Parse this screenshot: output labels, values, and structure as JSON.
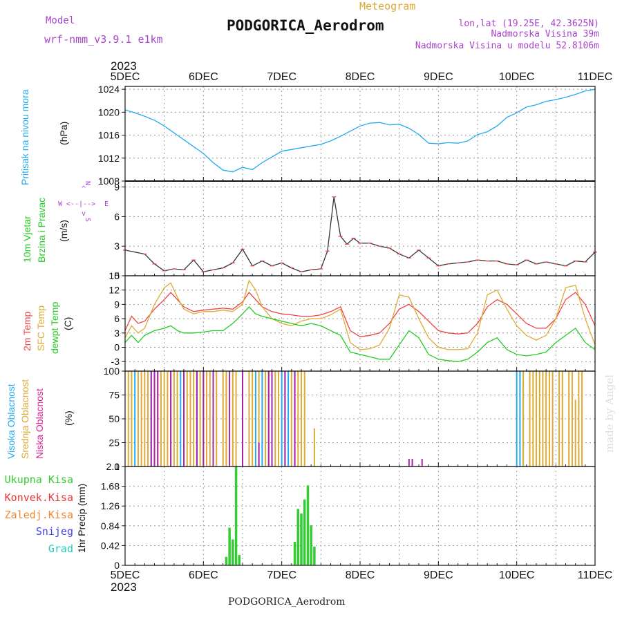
{
  "header": {
    "model_label": "Model",
    "model_name": "wrf-nmm_v3.9.1 e1km",
    "subtitle": "Meteogram",
    "station": "PODGORICA_Aerodrom",
    "lonlat": "lon,lat (19.25E, 42.3625N)",
    "elevation": "Nadmorska Visina 39m",
    "model_elevation": "Nadmorska Visina u modelu 52.8106m",
    "watermark": "made by Angel",
    "footer_station": "PODGORICA_Aerodrom"
  },
  "time_axis": {
    "year": "2023",
    "labels": [
      "5DEC",
      "6DEC",
      "7DEC",
      "8DEC",
      "9DEC",
      "10DEC",
      "11DEC"
    ]
  },
  "colors": {
    "pressure": "#22aaee",
    "wind_speed": "#333333",
    "wind_direction_labels": "#aa44cc",
    "temp2m": "#ee4444",
    "sfc_temp": "#ddaa33",
    "dewpoint": "#22cc22",
    "high_cloud": "#22aaee",
    "mid_cloud": "#ddaa33",
    "low_cloud": "#aa22aa",
    "total_precip": "#33cc33",
    "conv_precip": "#ee3333",
    "frozen_precip": "#ee8833",
    "snow": "#4444ee",
    "graupel": "#22ccbb",
    "grid": "#999999"
  },
  "chart_data": [
    {
      "type": "line",
      "panel": "pressure",
      "ylabel_left": "Pritisak na nivou mora",
      "ylabel_unit": "(hPa)",
      "yticks": [
        1008,
        1012,
        1016,
        1020,
        1024
      ],
      "ylim": [
        1008,
        1024.5
      ],
      "xlim": [
        0,
        144
      ],
      "grid": true,
      "series": [
        {
          "color_key": "pressure",
          "x": [
            0,
            3,
            6,
            9,
            12,
            18,
            24,
            27,
            30,
            33,
            36,
            39,
            42,
            45,
            48,
            54,
            60,
            63,
            66,
            69,
            72,
            75,
            78,
            81,
            84,
            87,
            90,
            93,
            96,
            99,
            102,
            105,
            108,
            111,
            114,
            117,
            120,
            123,
            126,
            129,
            132,
            135,
            138,
            141,
            144
          ],
          "y": [
            1020.4,
            1019.9,
            1019.3,
            1018.6,
            1017.6,
            1015.2,
            1012.8,
            1011.2,
            1009.9,
            1009.6,
            1010.4,
            1010.0,
            1011.2,
            1012.2,
            1013.2,
            1013.8,
            1014.4,
            1015.0,
            1015.8,
            1016.7,
            1017.6,
            1018.1,
            1018.2,
            1017.8,
            1017.9,
            1017.2,
            1016.1,
            1014.6,
            1014.5,
            1014.7,
            1014.6,
            1015.0,
            1016.1,
            1016.6,
            1017.6,
            1019.1,
            1019.9,
            1020.9,
            1021.3,
            1021.9,
            1022.2,
            1022.6,
            1023.1,
            1023.7,
            1024.0
          ]
        }
      ]
    },
    {
      "type": "line",
      "panel": "wind",
      "ylabel_left": [
        "10m Vjetar",
        "Brzina i Pravac"
      ],
      "ylabel_unit": "(m/s)",
      "direction_labels": [
        "N",
        "E",
        "S",
        "W"
      ],
      "direction_arrows": [
        "^",
        "<--|-->",
        "v"
      ],
      "yticks": [
        0,
        3,
        6,
        9
      ],
      "ylim": [
        0,
        9.6
      ],
      "xlim": [
        0,
        144
      ],
      "grid": true,
      "series": [
        {
          "color_key": "wind_speed",
          "x": [
            0,
            6,
            9,
            12,
            15,
            18,
            21,
            24,
            27,
            30,
            33,
            36,
            39,
            42,
            45,
            48,
            51,
            54,
            57,
            60,
            62,
            64,
            66,
            68,
            70,
            72,
            75,
            78,
            81,
            84,
            87,
            90,
            93,
            96,
            99,
            102,
            105,
            108,
            111,
            114,
            117,
            120,
            123,
            126,
            129,
            132,
            135,
            138,
            141,
            144
          ],
          "y": [
            2.6,
            2.2,
            1.2,
            0.5,
            0.7,
            0.6,
            1.6,
            0.4,
            0.6,
            0.8,
            1.3,
            2.7,
            1.0,
            1.5,
            1.0,
            1.3,
            0.8,
            0.4,
            0.6,
            0.7,
            2.5,
            8.0,
            4.0,
            3.2,
            3.8,
            3.3,
            3.3,
            3.0,
            2.8,
            2.2,
            1.8,
            2.6,
            1.8,
            1.0,
            1.2,
            1.3,
            1.4,
            1.6,
            1.5,
            1.5,
            1.2,
            1.1,
            1.6,
            1.2,
            1.4,
            1.2,
            1.0,
            1.5,
            1.4,
            2.4
          ]
        }
      ]
    },
    {
      "type": "line",
      "panel": "temperature",
      "ylabel_left": [
        "2m Temp",
        "SFC Temp",
        "dewpt Temp"
      ],
      "ylabel_unit": "(C)",
      "yticks": [
        -3,
        0,
        3,
        6,
        9,
        12,
        15
      ],
      "ylim": [
        -5,
        15
      ],
      "xlim": [
        0,
        144
      ],
      "grid": true,
      "series": [
        {
          "color_key": "temp2m",
          "x": [
            0,
            2,
            4,
            6,
            9,
            12,
            14,
            16,
            18,
            21,
            24,
            27,
            30,
            33,
            36,
            38,
            40,
            42,
            45,
            48,
            51,
            54,
            57,
            60,
            63,
            66,
            69,
            72,
            75,
            78,
            81,
            84,
            87,
            90,
            93,
            96,
            99,
            102,
            105,
            108,
            111,
            114,
            117,
            120,
            123,
            126,
            129,
            132,
            135,
            138,
            141,
            144
          ],
          "y": [
            3.5,
            6.5,
            5.0,
            5.5,
            8.0,
            10.0,
            11.5,
            10.0,
            8.5,
            7.5,
            7.8,
            8.0,
            8.2,
            8.0,
            9.5,
            11.5,
            10.0,
            8.5,
            7.5,
            7.0,
            6.8,
            6.5,
            6.5,
            6.8,
            7.5,
            8.5,
            3.5,
            2.2,
            2.5,
            3.0,
            5.0,
            8.0,
            9.0,
            7.5,
            5.5,
            3.5,
            3.0,
            2.8,
            3.0,
            5.0,
            8.5,
            10.0,
            9.0,
            7.0,
            5.0,
            4.0,
            4.0,
            6.0,
            10.0,
            11.5,
            9.0,
            4.5
          ]
        },
        {
          "color_key": "sfc_temp",
          "x": [
            0,
            2,
            4,
            6,
            9,
            12,
            14,
            16,
            18,
            21,
            24,
            27,
            30,
            33,
            36,
            38,
            40,
            42,
            45,
            48,
            51,
            54,
            57,
            60,
            63,
            66,
            69,
            72,
            75,
            78,
            81,
            84,
            87,
            90,
            93,
            96,
            99,
            102,
            105,
            108,
            111,
            114,
            117,
            120,
            123,
            126,
            129,
            132,
            135,
            138,
            141,
            144
          ],
          "y": [
            2.0,
            4.5,
            3.0,
            4.0,
            9.0,
            12.5,
            13.5,
            10.5,
            8.0,
            7.0,
            7.5,
            7.5,
            7.8,
            7.5,
            9.0,
            14.0,
            12.0,
            8.5,
            6.0,
            5.0,
            4.5,
            5.5,
            6.0,
            6.0,
            6.8,
            8.0,
            1.0,
            -0.5,
            -0.3,
            0.5,
            4.0,
            11.0,
            10.5,
            6.0,
            2.0,
            0.0,
            -0.5,
            -0.5,
            -0.3,
            3.0,
            11.0,
            12.0,
            8.0,
            4.5,
            2.5,
            1.5,
            2.5,
            6.0,
            12.5,
            13.0,
            6.0,
            0.5
          ]
        },
        {
          "color_key": "dewpoint",
          "x": [
            0,
            2,
            4,
            6,
            9,
            12,
            14,
            16,
            18,
            21,
            24,
            27,
            30,
            33,
            36,
            38,
            40,
            42,
            45,
            48,
            51,
            54,
            57,
            60,
            63,
            66,
            69,
            72,
            75,
            78,
            81,
            84,
            87,
            90,
            93,
            96,
            99,
            102,
            105,
            108,
            111,
            114,
            117,
            120,
            123,
            126,
            129,
            132,
            135,
            138,
            141,
            144
          ],
          "y": [
            1.0,
            2.5,
            1.0,
            2.5,
            3.5,
            4.0,
            4.5,
            3.5,
            3.0,
            3.0,
            3.2,
            3.5,
            3.5,
            5.0,
            7.0,
            8.5,
            7.0,
            6.5,
            6.0,
            5.5,
            5.0,
            4.5,
            5.0,
            4.5,
            3.5,
            2.5,
            -1.0,
            -1.5,
            -2.0,
            -2.5,
            -2.5,
            0.5,
            3.5,
            2.0,
            -1.5,
            -2.5,
            -2.8,
            -3.0,
            -2.5,
            -1.0,
            1.0,
            2.0,
            -0.5,
            -1.5,
            -1.8,
            -1.5,
            -1.0,
            1.0,
            2.5,
            4.0,
            1.0,
            -0.5
          ]
        }
      ]
    },
    {
      "type": "bar",
      "panel": "clouds",
      "ylabel_left": [
        "Visoka Oblacnost",
        "Srednja Oblacnost",
        "Niska Oblacnost"
      ],
      "ylabel_unit": "(%)",
      "yticks": [
        0,
        25,
        50,
        75,
        100
      ],
      "ylim": [
        0,
        100
      ],
      "xlim": [
        0,
        144
      ],
      "grid": true,
      "series": [
        {
          "name": "Visoka Oblacnost",
          "color_key": "high_cloud",
          "x": [
            3,
            8,
            17,
            18,
            22,
            27,
            40,
            42,
            45,
            48,
            50,
            52,
            120,
            121,
            122
          ],
          "values": [
            100,
            100,
            100,
            100,
            100,
            73,
            100,
            100,
            100,
            100,
            100,
            100,
            100,
            100,
            88
          ]
        },
        {
          "name": "Srednja Oblacnost",
          "color_key": "mid_cloud",
          "x": [
            1,
            2,
            4,
            5,
            6,
            7,
            9,
            10,
            11,
            12,
            13,
            14,
            15,
            16,
            18,
            19,
            20,
            21,
            23,
            24,
            25,
            26,
            28,
            30,
            31,
            33,
            34,
            38,
            39,
            41,
            43,
            44,
            46,
            47,
            49,
            51,
            53,
            54,
            55,
            58,
            122,
            124,
            125,
            126,
            127,
            128,
            129,
            130,
            131,
            133,
            134,
            136,
            137,
            138,
            139,
            140
          ],
          "values": [
            100,
            100,
            100,
            100,
            100,
            100,
            100,
            100,
            100,
            100,
            100,
            100,
            100,
            100,
            100,
            100,
            100,
            100,
            100,
            100,
            100,
            100,
            100,
            100,
            100,
            100,
            100,
            100,
            100,
            100,
            100,
            100,
            100,
            100,
            100,
            100,
            100,
            100,
            100,
            40,
            100,
            100,
            100,
            100,
            100,
            100,
            100,
            100,
            100,
            100,
            100,
            100,
            100,
            70,
            100,
            100
          ]
        },
        {
          "name": "Niska Oblacnost",
          "color_key": "low_cloud",
          "x": [
            8,
            9,
            10,
            14,
            18,
            22,
            24,
            27,
            32,
            36,
            41,
            44,
            45,
            49,
            52,
            87,
            88,
            91
          ],
          "values": [
            100,
            100,
            100,
            100,
            100,
            100,
            100,
            100,
            100,
            100,
            25,
            100,
            100,
            100,
            100,
            8,
            8,
            8
          ]
        }
      ]
    },
    {
      "type": "bar",
      "panel": "precip",
      "ylabel_left": [
        "Ukupna Kisa",
        "Konvek.Kisa",
        "Zaledj.Kisa",
        "Snijeg",
        "Grad"
      ],
      "ylabel_unit": "1hr Precip (mm)",
      "yticks": [
        0,
        0.42,
        0.84,
        1.26,
        1.68,
        2.1
      ],
      "ylim": [
        0,
        2.1
      ],
      "xlim": [
        0,
        144
      ],
      "grid": true,
      "series": [
        {
          "name": "Ukupna Kisa",
          "color_key": "total_precip",
          "x": [
            31,
            32,
            33,
            34,
            35,
            52,
            53,
            54,
            55,
            56,
            57,
            58
          ],
          "values": [
            0.18,
            0.8,
            0.55,
            2.1,
            0.22,
            0.5,
            1.2,
            1.1,
            1.4,
            1.7,
            0.85,
            0.4
          ]
        }
      ]
    }
  ]
}
